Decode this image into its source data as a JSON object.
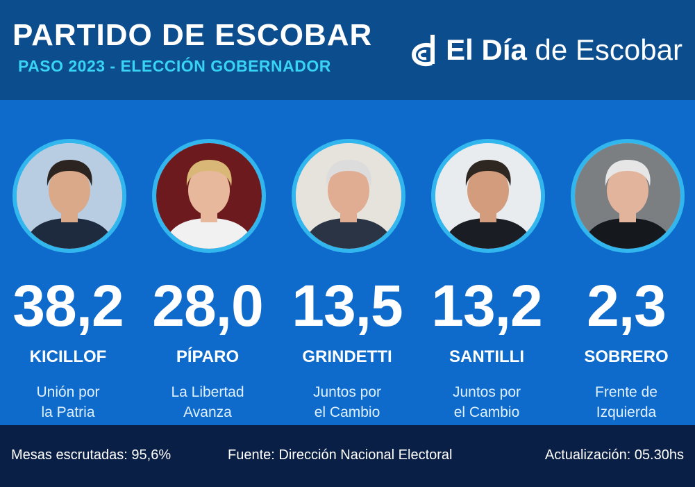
{
  "header": {
    "title": "PARTIDO DE ESCOBAR",
    "subtitle": "PASO 2023 - ELECCIÓN GOBERNADOR",
    "brand": {
      "bold": "El Día",
      "regular": " de Escobar",
      "logo_icon": "d-logo-icon"
    }
  },
  "candidates": [
    {
      "pct": "38,2",
      "name": "KICILLOF",
      "party_line1": "Unión por",
      "party_line2": "la Patria",
      "photo_bg": "#b8cde2",
      "skin": "#d9a98a",
      "hair": "#2b2420",
      "clothes": "#1e2a3d"
    },
    {
      "pct": "28,0",
      "name": "PÍPARO",
      "party_line1": "La Libertad",
      "party_line2": "Avanza",
      "photo_bg": "#6d1a1e",
      "skin": "#e7b89c",
      "hair": "#d9b877",
      "clothes": "#f1f1f1"
    },
    {
      "pct": "13,5",
      "name": "GRINDETTI",
      "party_line1": "Juntos por",
      "party_line2": "el Cambio",
      "photo_bg": "#e6e2dc",
      "skin": "#e0ad92",
      "hair": "#dcdcdc",
      "clothes": "#2b3445"
    },
    {
      "pct": "13,2",
      "name": "SANTILLI",
      "party_line1": "Juntos por",
      "party_line2": "el Cambio",
      "photo_bg": "#e9ecef",
      "skin": "#d39c7d",
      "hair": "#2e2621",
      "clothes": "#1a1d24"
    },
    {
      "pct": "2,3",
      "name": "SOBRERO",
      "party_line1": "Frente de",
      "party_line2": "Izquierda",
      "photo_bg": "#7c7f82",
      "skin": "#e3b49c",
      "hair": "#e6e6e6",
      "clothes": "#15181d"
    }
  ],
  "footer": {
    "mesas": "Mesas escrutadas: 95,6%",
    "fuente": "Fuente: Dirección Nacional Electoral",
    "actualizacion": "Actualización: 05.30hs"
  }
}
